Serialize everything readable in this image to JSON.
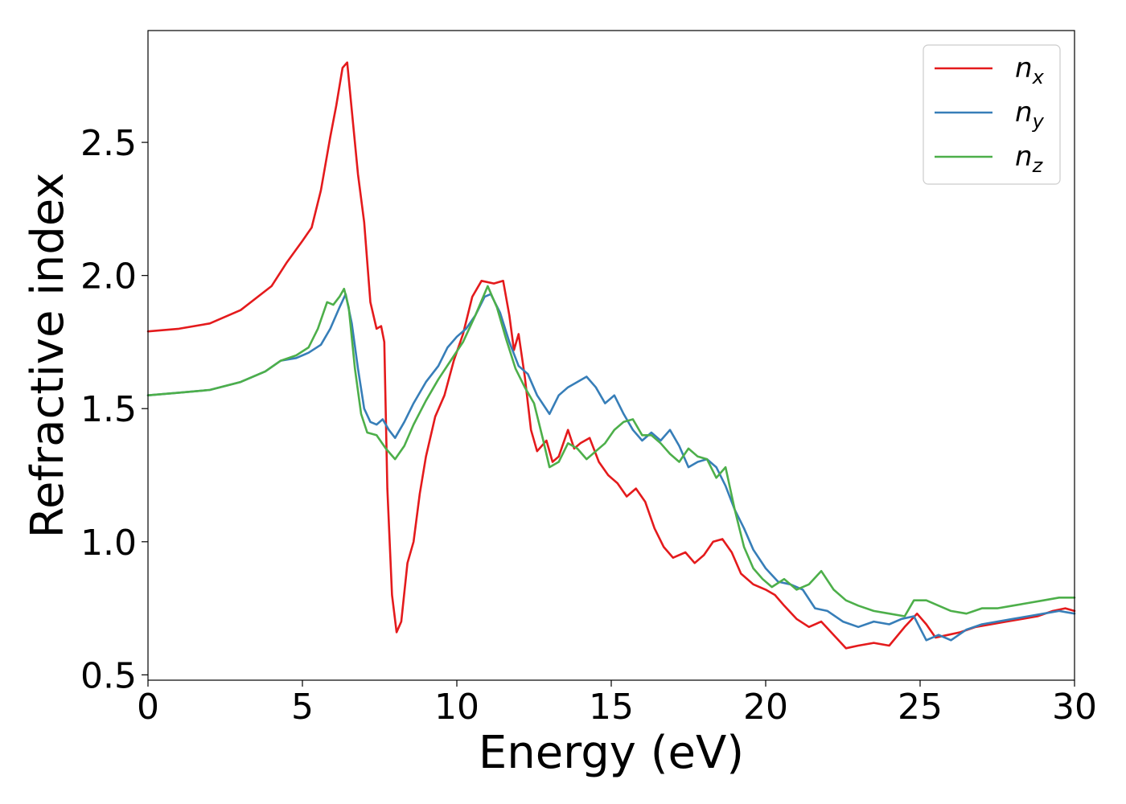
{
  "chart_data": {
    "type": "line",
    "title": "",
    "xlabel": "Energy (eV)",
    "ylabel": "Refractive index",
    "xlim": [
      0,
      30
    ],
    "ylim": [
      0.48,
      2.92
    ],
    "xticks": [
      0,
      5,
      10,
      15,
      20,
      25,
      30
    ],
    "yticks": [
      0.5,
      1.0,
      1.5,
      2.0,
      2.5
    ],
    "xtick_labels": [
      "0",
      "5",
      "10",
      "15",
      "20",
      "25",
      "30"
    ],
    "ytick_labels": [
      "0.5",
      "1.0",
      "1.5",
      "2.0",
      "2.5"
    ],
    "grid": false,
    "legend_position": "top-right",
    "series": [
      {
        "name": "n_x",
        "label_base": "n",
        "label_sub": "x",
        "color": "#e41a1c",
        "points": [
          [
            0,
            1.79
          ],
          [
            1,
            1.8
          ],
          [
            2,
            1.82
          ],
          [
            3,
            1.87
          ],
          [
            4,
            1.96
          ],
          [
            4.5,
            2.05
          ],
          [
            5,
            2.13
          ],
          [
            5.3,
            2.18
          ],
          [
            5.6,
            2.32
          ],
          [
            5.9,
            2.52
          ],
          [
            6.1,
            2.64
          ],
          [
            6.3,
            2.78
          ],
          [
            6.45,
            2.8
          ],
          [
            6.6,
            2.62
          ],
          [
            6.8,
            2.38
          ],
          [
            7.0,
            2.2
          ],
          [
            7.2,
            1.9
          ],
          [
            7.4,
            1.8
          ],
          [
            7.55,
            1.81
          ],
          [
            7.65,
            1.75
          ],
          [
            7.75,
            1.2
          ],
          [
            7.9,
            0.8
          ],
          [
            8.05,
            0.66
          ],
          [
            8.2,
            0.7
          ],
          [
            8.4,
            0.92
          ],
          [
            8.6,
            1.0
          ],
          [
            8.8,
            1.18
          ],
          [
            9.0,
            1.32
          ],
          [
            9.3,
            1.47
          ],
          [
            9.6,
            1.55
          ],
          [
            9.9,
            1.68
          ],
          [
            10.2,
            1.78
          ],
          [
            10.5,
            1.92
          ],
          [
            10.8,
            1.98
          ],
          [
            11.2,
            1.97
          ],
          [
            11.5,
            1.98
          ],
          [
            11.7,
            1.85
          ],
          [
            11.85,
            1.72
          ],
          [
            12.0,
            1.78
          ],
          [
            12.2,
            1.62
          ],
          [
            12.4,
            1.42
          ],
          [
            12.6,
            1.34
          ],
          [
            12.9,
            1.38
          ],
          [
            13.1,
            1.3
          ],
          [
            13.3,
            1.32
          ],
          [
            13.6,
            1.42
          ],
          [
            13.8,
            1.35
          ],
          [
            14.0,
            1.37
          ],
          [
            14.3,
            1.39
          ],
          [
            14.6,
            1.3
          ],
          [
            14.9,
            1.25
          ],
          [
            15.2,
            1.22
          ],
          [
            15.5,
            1.17
          ],
          [
            15.8,
            1.2
          ],
          [
            16.1,
            1.15
          ],
          [
            16.4,
            1.05
          ],
          [
            16.7,
            0.98
          ],
          [
            17.0,
            0.94
          ],
          [
            17.4,
            0.96
          ],
          [
            17.7,
            0.92
          ],
          [
            18.0,
            0.95
          ],
          [
            18.3,
            1.0
          ],
          [
            18.6,
            1.01
          ],
          [
            18.9,
            0.96
          ],
          [
            19.2,
            0.88
          ],
          [
            19.6,
            0.84
          ],
          [
            20.0,
            0.82
          ],
          [
            20.3,
            0.8
          ],
          [
            20.6,
            0.76
          ],
          [
            21.0,
            0.71
          ],
          [
            21.4,
            0.68
          ],
          [
            21.8,
            0.7
          ],
          [
            22.2,
            0.65
          ],
          [
            22.6,
            0.6
          ],
          [
            23.0,
            0.61
          ],
          [
            23.5,
            0.62
          ],
          [
            24.0,
            0.61
          ],
          [
            24.5,
            0.68
          ],
          [
            24.9,
            0.73
          ],
          [
            25.2,
            0.69
          ],
          [
            25.5,
            0.64
          ],
          [
            25.9,
            0.65
          ],
          [
            26.3,
            0.66
          ],
          [
            26.8,
            0.68
          ],
          [
            27.3,
            0.69
          ],
          [
            27.8,
            0.7
          ],
          [
            28.3,
            0.71
          ],
          [
            28.8,
            0.72
          ],
          [
            29.3,
            0.74
          ],
          [
            29.7,
            0.75
          ],
          [
            30,
            0.74
          ]
        ]
      },
      {
        "name": "n_y",
        "label_base": "n",
        "label_sub": "y",
        "color": "#377eb8",
        "points": [
          [
            0,
            1.55
          ],
          [
            1,
            1.56
          ],
          [
            2,
            1.57
          ],
          [
            3,
            1.6
          ],
          [
            3.8,
            1.64
          ],
          [
            4.3,
            1.68
          ],
          [
            4.8,
            1.69
          ],
          [
            5.2,
            1.71
          ],
          [
            5.6,
            1.74
          ],
          [
            5.9,
            1.8
          ],
          [
            6.2,
            1.88
          ],
          [
            6.4,
            1.93
          ],
          [
            6.6,
            1.82
          ],
          [
            6.8,
            1.65
          ],
          [
            7.0,
            1.5
          ],
          [
            7.2,
            1.45
          ],
          [
            7.4,
            1.44
          ],
          [
            7.6,
            1.46
          ],
          [
            7.8,
            1.42
          ],
          [
            8.0,
            1.39
          ],
          [
            8.3,
            1.45
          ],
          [
            8.6,
            1.52
          ],
          [
            9.0,
            1.6
          ],
          [
            9.4,
            1.66
          ],
          [
            9.7,
            1.73
          ],
          [
            10.0,
            1.77
          ],
          [
            10.3,
            1.8
          ],
          [
            10.6,
            1.85
          ],
          [
            10.9,
            1.92
          ],
          [
            11.1,
            1.93
          ],
          [
            11.4,
            1.86
          ],
          [
            11.7,
            1.75
          ],
          [
            12.0,
            1.66
          ],
          [
            12.3,
            1.63
          ],
          [
            12.6,
            1.55
          ],
          [
            13.0,
            1.48
          ],
          [
            13.3,
            1.55
          ],
          [
            13.6,
            1.58
          ],
          [
            13.9,
            1.6
          ],
          [
            14.2,
            1.62
          ],
          [
            14.5,
            1.58
          ],
          [
            14.8,
            1.52
          ],
          [
            15.1,
            1.55
          ],
          [
            15.4,
            1.48
          ],
          [
            15.7,
            1.42
          ],
          [
            16.0,
            1.38
          ],
          [
            16.3,
            1.41
          ],
          [
            16.6,
            1.38
          ],
          [
            16.9,
            1.42
          ],
          [
            17.2,
            1.36
          ],
          [
            17.5,
            1.28
          ],
          [
            17.8,
            1.3
          ],
          [
            18.1,
            1.31
          ],
          [
            18.4,
            1.28
          ],
          [
            18.7,
            1.21
          ],
          [
            19.0,
            1.12
          ],
          [
            19.3,
            1.05
          ],
          [
            19.6,
            0.97
          ],
          [
            20.0,
            0.9
          ],
          [
            20.4,
            0.85
          ],
          [
            20.8,
            0.84
          ],
          [
            21.2,
            0.82
          ],
          [
            21.6,
            0.75
          ],
          [
            22.0,
            0.74
          ],
          [
            22.5,
            0.7
          ],
          [
            23.0,
            0.68
          ],
          [
            23.5,
            0.7
          ],
          [
            24.0,
            0.69
          ],
          [
            24.4,
            0.71
          ],
          [
            24.8,
            0.72
          ],
          [
            25.2,
            0.63
          ],
          [
            25.6,
            0.65
          ],
          [
            26.0,
            0.63
          ],
          [
            26.5,
            0.67
          ],
          [
            27.0,
            0.69
          ],
          [
            27.5,
            0.7
          ],
          [
            28.0,
            0.71
          ],
          [
            28.5,
            0.72
          ],
          [
            29.0,
            0.73
          ],
          [
            29.5,
            0.74
          ],
          [
            30,
            0.73
          ]
        ]
      },
      {
        "name": "n_z",
        "label_base": "n",
        "label_sub": "z",
        "color": "#4daf4a",
        "points": [
          [
            0,
            1.55
          ],
          [
            1,
            1.56
          ],
          [
            2,
            1.57
          ],
          [
            3,
            1.6
          ],
          [
            3.8,
            1.64
          ],
          [
            4.3,
            1.68
          ],
          [
            4.8,
            1.7
          ],
          [
            5.2,
            1.73
          ],
          [
            5.5,
            1.8
          ],
          [
            5.8,
            1.9
          ],
          [
            6.0,
            1.89
          ],
          [
            6.2,
            1.92
          ],
          [
            6.35,
            1.95
          ],
          [
            6.5,
            1.88
          ],
          [
            6.7,
            1.65
          ],
          [
            6.9,
            1.48
          ],
          [
            7.1,
            1.41
          ],
          [
            7.4,
            1.4
          ],
          [
            7.7,
            1.35
          ],
          [
            8.0,
            1.31
          ],
          [
            8.3,
            1.36
          ],
          [
            8.6,
            1.44
          ],
          [
            9.0,
            1.53
          ],
          [
            9.4,
            1.61
          ],
          [
            9.8,
            1.68
          ],
          [
            10.2,
            1.75
          ],
          [
            10.6,
            1.85
          ],
          [
            11.0,
            1.96
          ],
          [
            11.3,
            1.88
          ],
          [
            11.6,
            1.76
          ],
          [
            11.9,
            1.65
          ],
          [
            12.2,
            1.58
          ],
          [
            12.5,
            1.52
          ],
          [
            12.8,
            1.38
          ],
          [
            13.0,
            1.28
          ],
          [
            13.3,
            1.3
          ],
          [
            13.6,
            1.37
          ],
          [
            13.9,
            1.35
          ],
          [
            14.2,
            1.31
          ],
          [
            14.5,
            1.34
          ],
          [
            14.8,
            1.37
          ],
          [
            15.1,
            1.42
          ],
          [
            15.4,
            1.45
          ],
          [
            15.7,
            1.46
          ],
          [
            16.0,
            1.4
          ],
          [
            16.3,
            1.4
          ],
          [
            16.6,
            1.37
          ],
          [
            16.9,
            1.33
          ],
          [
            17.2,
            1.3
          ],
          [
            17.5,
            1.35
          ],
          [
            17.8,
            1.32
          ],
          [
            18.1,
            1.31
          ],
          [
            18.4,
            1.24
          ],
          [
            18.7,
            1.28
          ],
          [
            19.0,
            1.12
          ],
          [
            19.3,
            0.98
          ],
          [
            19.6,
            0.9
          ],
          [
            19.9,
            0.86
          ],
          [
            20.2,
            0.83
          ],
          [
            20.6,
            0.86
          ],
          [
            21.0,
            0.82
          ],
          [
            21.4,
            0.84
          ],
          [
            21.8,
            0.89
          ],
          [
            22.2,
            0.82
          ],
          [
            22.6,
            0.78
          ],
          [
            23.0,
            0.76
          ],
          [
            23.5,
            0.74
          ],
          [
            24.0,
            0.73
          ],
          [
            24.5,
            0.72
          ],
          [
            24.8,
            0.78
          ],
          [
            25.2,
            0.78
          ],
          [
            25.6,
            0.76
          ],
          [
            26.0,
            0.74
          ],
          [
            26.5,
            0.73
          ],
          [
            27.0,
            0.75
          ],
          [
            27.5,
            0.75
          ],
          [
            28.0,
            0.76
          ],
          [
            28.5,
            0.77
          ],
          [
            29.0,
            0.78
          ],
          [
            29.5,
            0.79
          ],
          [
            30,
            0.79
          ]
        ]
      }
    ]
  }
}
